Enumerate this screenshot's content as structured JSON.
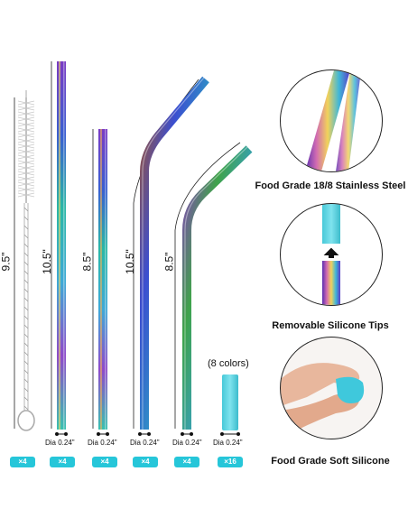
{
  "brush": {
    "length": "9.5\"",
    "quantity": "×4"
  },
  "straws": [
    {
      "id": "long-straight",
      "length": "10.5\"",
      "diameter": "Dia 0.24\"",
      "quantity": "×4"
    },
    {
      "id": "short-straight",
      "length": "8.5\"",
      "diameter": "Dia 0.24\"",
      "quantity": "×4"
    },
    {
      "id": "long-bent",
      "length": "10.5\"",
      "diameter": "Dia 0.24\"",
      "quantity": "×4"
    },
    {
      "id": "short-bent",
      "length": "8.5\"",
      "diameter": "Dia 0.24\"",
      "quantity": "×4"
    }
  ],
  "tips": {
    "colors_label": "(8 colors)",
    "diameter": "Dia 0.24\"",
    "quantity": "×16",
    "color": "#4fd2e0"
  },
  "features": [
    {
      "caption": "Food Grade 18/8 Stainless Steel"
    },
    {
      "caption": "Removable Silicone Tips"
    },
    {
      "caption": "Food Grade Soft Silicone"
    }
  ],
  "colors": {
    "badge": "#26c6d9",
    "silicone": "#4fd2e0"
  }
}
